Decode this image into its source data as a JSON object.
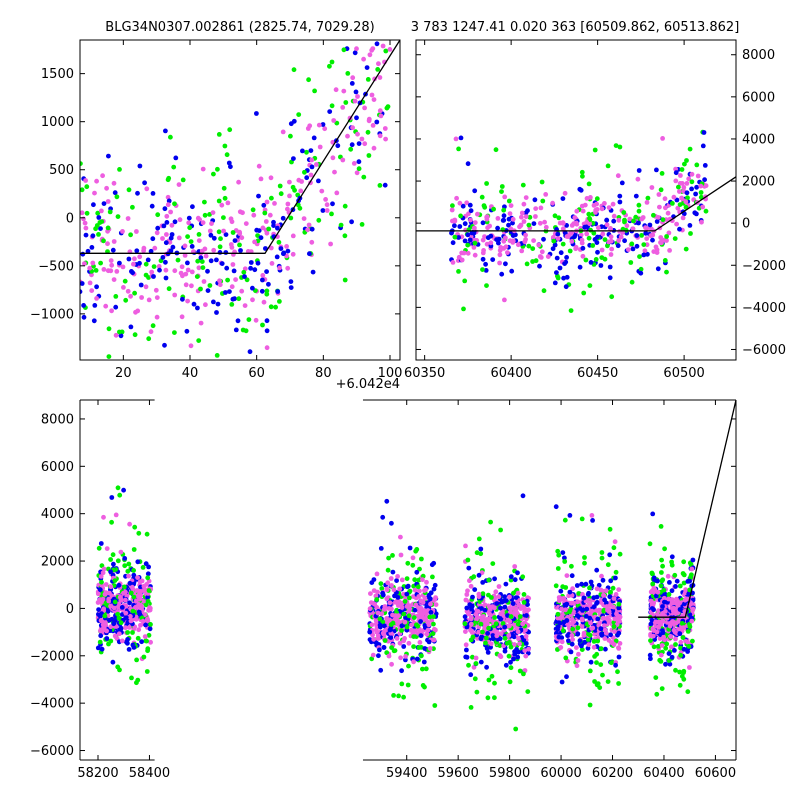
{
  "figure": {
    "title_left": "BLG34N0307.002861 (2825.74, 7029.28)",
    "title_right": "3 783 1247.41 0.020 363 [60509.862, 60513.862]",
    "offset_label": "+6.042e4"
  },
  "colors": {
    "green": "#00ee00",
    "blue": "#0000ee",
    "pink": "#ee5ee0",
    "model": "#000000"
  },
  "chart_data": [
    {
      "id": "top-left",
      "type": "scatter",
      "title": "BLG34N0307.002861 (2825.74, 7029.28)",
      "xlim": [
        7,
        103
      ],
      "ylim": [
        -1480,
        1850
      ],
      "xticks": [
        20,
        40,
        60,
        80,
        100
      ],
      "xtick_labels": [
        "20",
        "40",
        "60",
        "80",
        "100"
      ],
      "yticks": [
        -1000,
        -500,
        0,
        500,
        1000,
        1500
      ],
      "ytick_labels": [
        "−1000",
        "−500",
        "0",
        "500",
        "1000",
        "1500"
      ],
      "yaxis_side": "left",
      "x_offset_text": "+6.042e4",
      "model_line": {
        "x": [
          7,
          62.5,
          103
        ],
        "y": [
          -370,
          -370,
          1850
        ]
      },
      "series_style": {
        "green": {
          "n": 170,
          "xrange": [
            7,
            100
          ],
          "spread": 620
        },
        "blue": {
          "n": 190,
          "xrange": [
            7,
            100
          ],
          "spread": 520
        },
        "pink": {
          "n": 260,
          "xrange": [
            7,
            100
          ],
          "spread": 420
        }
      }
    },
    {
      "id": "top-right",
      "type": "scatter",
      "title": "3 783 1247.41 0.020 363 [60509.862, 60513.862]",
      "xlim": [
        60345,
        60530
      ],
      "ylim": [
        -6500,
        8700
      ],
      "xticks": [
        60350,
        60400,
        60450,
        60500
      ],
      "xtick_labels": [
        "60350",
        "60400",
        "60450",
        "60500"
      ],
      "yticks": [
        -6000,
        -4000,
        -2000,
        0,
        2000,
        4000,
        6000,
        8000
      ],
      "ytick_labels": [
        "−6000",
        "−4000",
        "−2000",
        "0",
        "2000",
        "4000",
        "6000",
        "8000"
      ],
      "yaxis_side": "right",
      "model_line": {
        "x": [
          60345,
          60483,
          60530
        ],
        "y": [
          -370,
          -370,
          2200
        ]
      },
      "series_style": {
        "green": {
          "n": 140,
          "xrange": [
            60365,
            60513
          ],
          "spread": 1400
        },
        "blue": {
          "n": 200,
          "xrange": [
            60365,
            60513
          ],
          "spread": 1000
        },
        "pink": {
          "n": 260,
          "xrange": [
            60365,
            60513
          ],
          "spread": 800
        }
      }
    },
    {
      "id": "bottom",
      "type": "scatter",
      "xlim": [
        58130,
        60680
      ],
      "ylim": [
        -6400,
        8800
      ],
      "xticks": [
        58200,
        58400,
        59400,
        59600,
        59800,
        60000,
        60200,
        60400,
        60600
      ],
      "xtick_labels": [
        "58200",
        "58400",
        "59400",
        "59600",
        "59800",
        "60000",
        "60200",
        "60400",
        "60600"
      ],
      "yticks": [
        -6000,
        -4000,
        -2000,
        0,
        2000,
        4000,
        6000,
        8000
      ],
      "ytick_labels": [
        "−6000",
        "−4000",
        "−2000",
        "0",
        "2000",
        "4000",
        "6000",
        "8000"
      ],
      "yaxis_side": "left",
      "axis_break": {
        "x1": 58420,
        "x2": 59230
      },
      "seasons": [
        {
          "start": 58200,
          "end": 58405,
          "offset": 0
        },
        {
          "start": 59255,
          "end": 59515,
          "offset": -350
        },
        {
          "start": 59625,
          "end": 59875,
          "offset": -480
        },
        {
          "start": 59980,
          "end": 60230,
          "offset": -380
        },
        {
          "start": 60345,
          "end": 60515,
          "offset": -300
        }
      ],
      "model_line": {
        "x": [
          60300,
          60483,
          60680
        ],
        "y": [
          -370,
          -370,
          8800
        ]
      },
      "series_style": {
        "green": {
          "n_per_season": 110,
          "spread": 1500
        },
        "blue": {
          "n_per_season": 160,
          "spread": 900
        },
        "pink": {
          "n_per_season": 240,
          "spread": 650
        }
      }
    }
  ]
}
